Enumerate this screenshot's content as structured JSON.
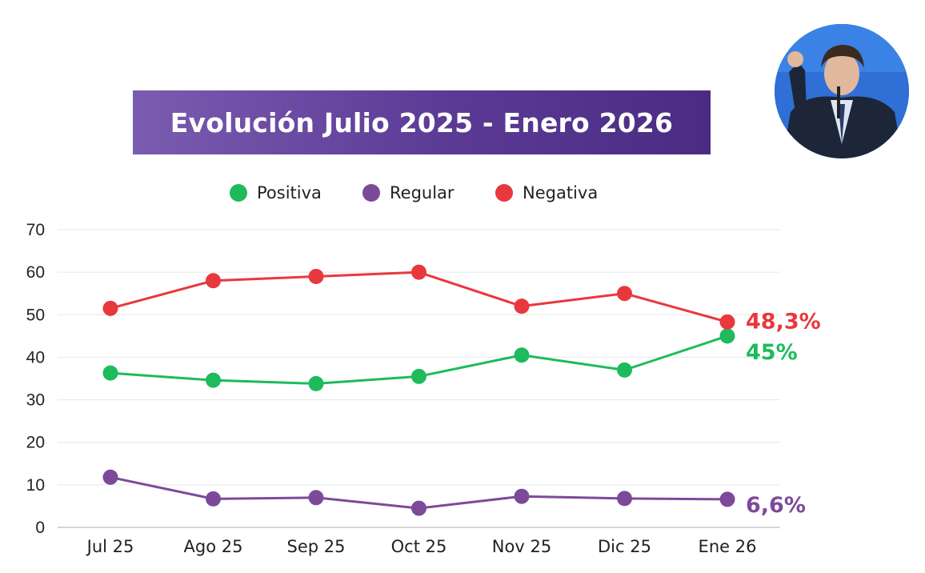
{
  "title": "Evolución Julio 2025 - Enero 2026",
  "avatar_label": "speaker-photo",
  "chart_data": {
    "type": "line",
    "categories": [
      "Jul 25",
      "Ago 25",
      "Sep 25",
      "Oct 25",
      "Nov 25",
      "Dic 25",
      "Ene 26"
    ],
    "ylim": [
      0,
      70
    ],
    "yticks": [
      0,
      10,
      20,
      30,
      40,
      50,
      60,
      70
    ],
    "grid": true,
    "legend_position": "top-center",
    "series": [
      {
        "key": "positiva",
        "name": "Positiva",
        "color": "#1dbb5b",
        "values": [
          36.3,
          34.6,
          33.8,
          35.5,
          40.5,
          37.0,
          45.0
        ],
        "end_label": "45%"
      },
      {
        "key": "regular",
        "name": "Regular",
        "color": "#7d4a9a",
        "values": [
          11.8,
          6.7,
          7.0,
          4.5,
          7.3,
          6.8,
          6.6
        ],
        "end_label": "6,6%"
      },
      {
        "key": "negativa",
        "name": "Negativa",
        "color": "#e8383d",
        "values": [
          51.5,
          58.0,
          59.0,
          60.0,
          52.0,
          55.0,
          48.3
        ],
        "end_label": "48,3%"
      }
    ]
  }
}
